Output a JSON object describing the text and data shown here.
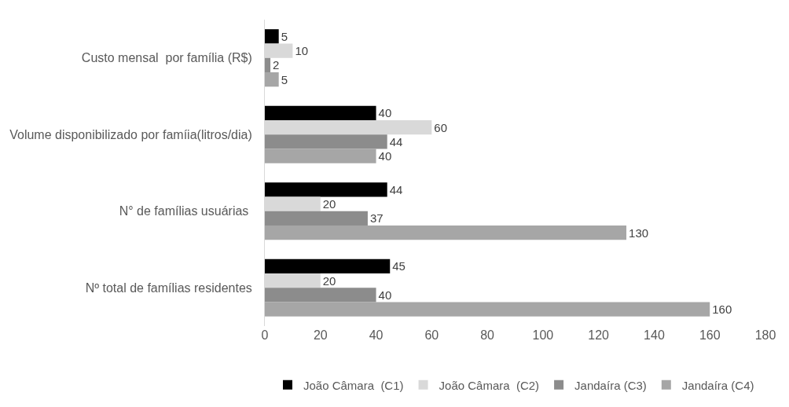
{
  "chart_data": {
    "type": "bar",
    "orientation": "horizontal",
    "categories": [
      "Custo mensal  por família (R$)",
      "Volume disponibilizado por famíia(litros/dia)",
      "N° de famílias usuárias ",
      "Nº total de famílias residentes"
    ],
    "series": [
      {
        "name": "João Câmara  (C1)",
        "color": "#000000",
        "values": [
          5,
          40,
          44,
          45
        ]
      },
      {
        "name": "João Câmara  (C2)",
        "color": "#d9d9d9",
        "values": [
          10,
          60,
          20,
          20
        ]
      },
      {
        "name": "Jandaíra (C3)",
        "color": "#8c8c8c",
        "values": [
          2,
          44,
          37,
          40
        ]
      },
      {
        "name": "Jandaíra (C4)",
        "color": "#a6a6a6",
        "values": [
          5,
          40,
          130,
          160
        ]
      }
    ],
    "xlim": [
      0,
      180
    ],
    "xticks": [
      0,
      20,
      40,
      60,
      80,
      100,
      120,
      140,
      160,
      180
    ],
    "data_labels": true,
    "grid": false,
    "legend": "bottom"
  }
}
